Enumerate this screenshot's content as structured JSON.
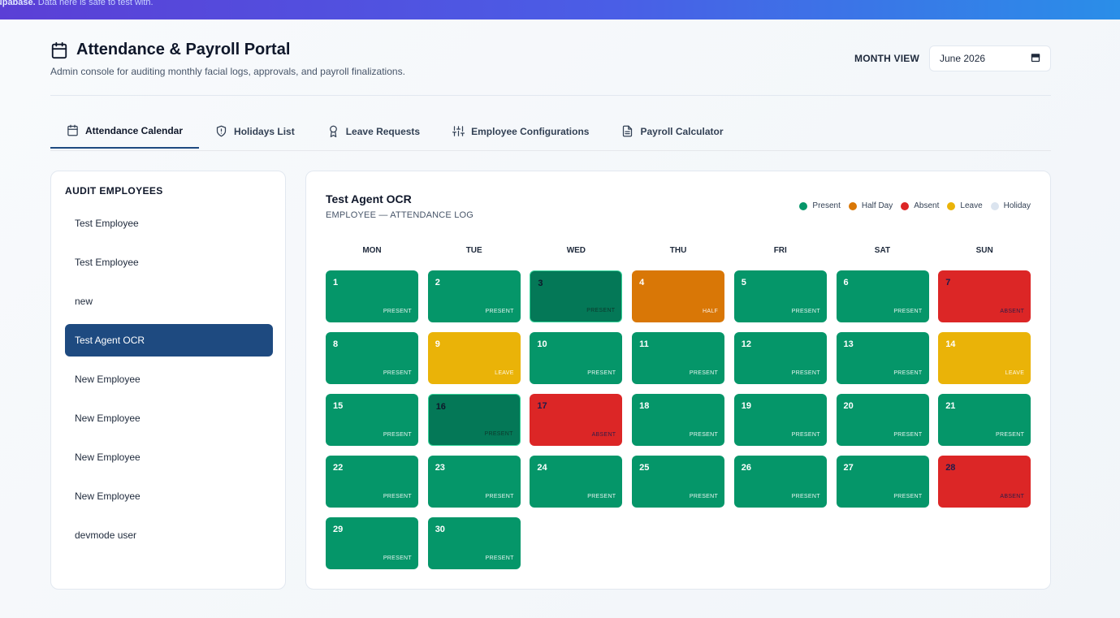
{
  "banner": {
    "brand": "upabase.",
    "text": " Data here is safe to test with."
  },
  "header": {
    "title": "Attendance & Payroll Portal",
    "subtitle": "Admin console for auditing monthly facial logs, approvals, and payroll finalizations.",
    "month_label": "MONTH VIEW",
    "month_value": "June 2026"
  },
  "tabs": [
    {
      "label": "Attendance Calendar",
      "icon": "calendar-icon",
      "active": true
    },
    {
      "label": "Holidays List",
      "icon": "shield-alert-icon"
    },
    {
      "label": "Leave Requests",
      "icon": "award-icon"
    },
    {
      "label": "Employee Configurations",
      "icon": "sliders-icon"
    },
    {
      "label": "Payroll Calculator",
      "icon": "file-text-icon"
    }
  ],
  "employees": {
    "title": "AUDIT EMPLOYEES",
    "items": [
      {
        "name": "Test Employee"
      },
      {
        "name": "Test Employee"
      },
      {
        "name": "new"
      },
      {
        "name": "Test Agent OCR",
        "active": true
      },
      {
        "name": "New Employee"
      },
      {
        "name": "New Employee"
      },
      {
        "name": "New Employee"
      },
      {
        "name": "New Employee"
      },
      {
        "name": "devmode user"
      }
    ]
  },
  "calendar": {
    "employee_name": "Test Agent OCR",
    "subtitle": "EMPLOYEE — ATTENDANCE LOG",
    "legend": [
      {
        "label": "Present",
        "color": "#059669"
      },
      {
        "label": "Half Day",
        "color": "#d97706"
      },
      {
        "label": "Absent",
        "color": "#dc2626"
      },
      {
        "label": "Leave",
        "color": "#eab308"
      },
      {
        "label": "Holiday",
        "color": "#dbe4ef"
      }
    ],
    "weekdays": [
      "MON",
      "TUE",
      "WED",
      "THU",
      "FRI",
      "SAT",
      "SUN"
    ],
    "days": [
      {
        "day": "1",
        "status": "PRESENT",
        "kind": "present"
      },
      {
        "day": "2",
        "status": "PRESENT",
        "kind": "present"
      },
      {
        "day": "3",
        "status": "PRESENT",
        "kind": "selected"
      },
      {
        "day": "4",
        "status": "HALF",
        "kind": "half"
      },
      {
        "day": "5",
        "status": "PRESENT",
        "kind": "present"
      },
      {
        "day": "6",
        "status": "PRESENT",
        "kind": "present"
      },
      {
        "day": "7",
        "status": "ABSENT",
        "kind": "absent",
        "dark": true
      },
      {
        "day": "8",
        "status": "PRESENT",
        "kind": "present"
      },
      {
        "day": "9",
        "status": "LEAVE",
        "kind": "leave"
      },
      {
        "day": "10",
        "status": "PRESENT",
        "kind": "present"
      },
      {
        "day": "11",
        "status": "PRESENT",
        "kind": "present"
      },
      {
        "day": "12",
        "status": "PRESENT",
        "kind": "present"
      },
      {
        "day": "13",
        "status": "PRESENT",
        "kind": "present"
      },
      {
        "day": "14",
        "status": "LEAVE",
        "kind": "leave"
      },
      {
        "day": "15",
        "status": "PRESENT",
        "kind": "present"
      },
      {
        "day": "16",
        "status": "PRESENT",
        "kind": "selected"
      },
      {
        "day": "17",
        "status": "ABSENT",
        "kind": "absent",
        "dark": true
      },
      {
        "day": "18",
        "status": "PRESENT",
        "kind": "present"
      },
      {
        "day": "19",
        "status": "PRESENT",
        "kind": "present"
      },
      {
        "day": "20",
        "status": "PRESENT",
        "kind": "present"
      },
      {
        "day": "21",
        "status": "PRESENT",
        "kind": "present"
      },
      {
        "day": "22",
        "status": "PRESENT",
        "kind": "present"
      },
      {
        "day": "23",
        "status": "PRESENT",
        "kind": "present"
      },
      {
        "day": "24",
        "status": "PRESENT",
        "kind": "present"
      },
      {
        "day": "25",
        "status": "PRESENT",
        "kind": "present"
      },
      {
        "day": "26",
        "status": "PRESENT",
        "kind": "present"
      },
      {
        "day": "27",
        "status": "PRESENT",
        "kind": "present"
      },
      {
        "day": "28",
        "status": "ABSENT",
        "kind": "absent",
        "dark": true
      },
      {
        "day": "29",
        "status": "PRESENT",
        "kind": "present"
      },
      {
        "day": "30",
        "status": "PRESENT",
        "kind": "present"
      }
    ]
  }
}
